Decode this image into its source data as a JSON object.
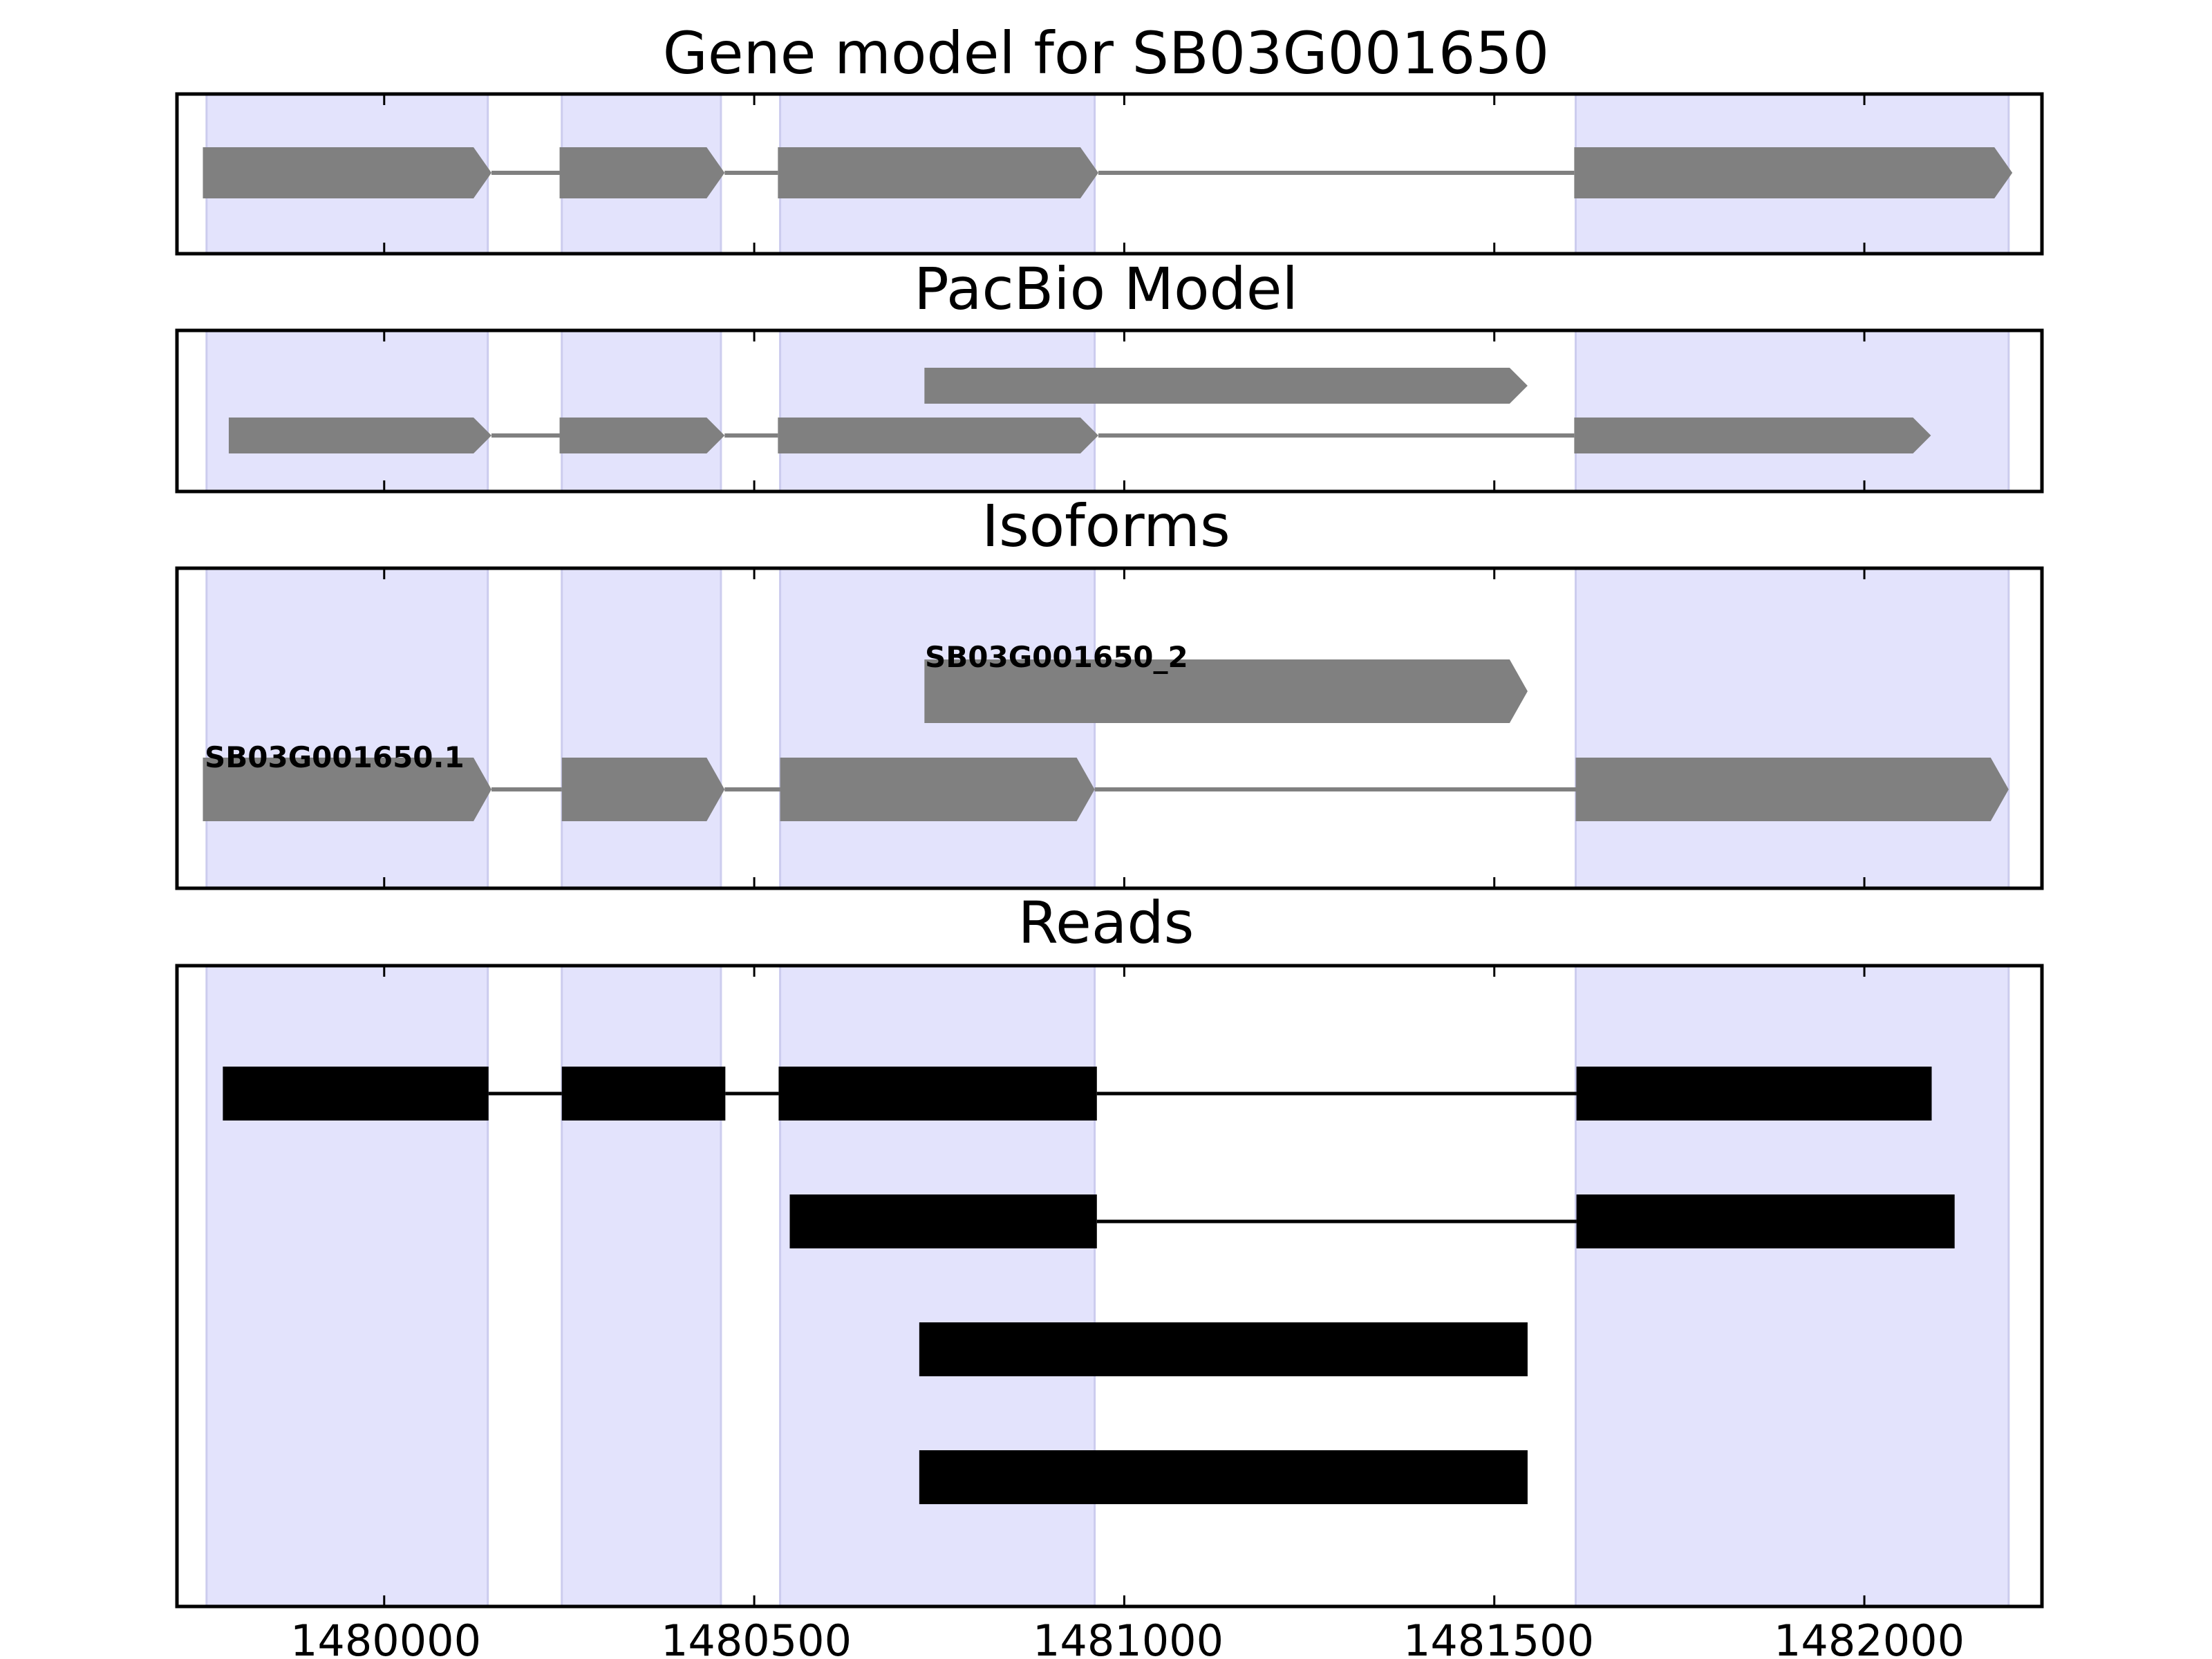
{
  "colors": {
    "exon_highlight": "#e3e3fc",
    "exon_highlight_edge": "#ccccee",
    "model_fill": "#808080",
    "read_fill": "#000000",
    "intron_model": "#808080",
    "intron_read": "#000000",
    "frame": "#000000"
  },
  "chart_data": {
    "type": "gene-structure",
    "xlim": [
      1479720,
      1482240
    ],
    "ticks": [
      1480000,
      1480500,
      1481000,
      1481500,
      1482000
    ],
    "tick_labels": [
      "1480000",
      "1480500",
      "1481000",
      "1481500",
      "1482000"
    ],
    "highlight_regions": [
      [
        1479760,
        1480140
      ],
      [
        1480240,
        1480455
      ],
      [
        1480535,
        1480960
      ],
      [
        1481610,
        1482195
      ]
    ],
    "panels": [
      {
        "title": "Gene model for SB03G001650",
        "kind": "model",
        "rows": [
          {
            "label": "",
            "exons": [
              [
                1479755,
                1480145
              ],
              [
                1480237,
                1480460
              ],
              [
                1480532,
                1480965
              ],
              [
                1481608,
                1482200
              ]
            ]
          }
        ]
      },
      {
        "title": "PacBio Model",
        "kind": "model",
        "rows": [
          {
            "label": "",
            "exons": [
              [
                1480730,
                1481545
              ]
            ]
          },
          {
            "label": "",
            "exons": [
              [
                1479790,
                1480145
              ],
              [
                1480237,
                1480460
              ],
              [
                1480532,
                1480965
              ],
              [
                1481608,
                1482090
              ]
            ]
          }
        ]
      },
      {
        "title": "Isoforms",
        "kind": "model",
        "rows": [
          {
            "label": "SB03G001650_2",
            "exons": [
              [
                1480730,
                1481545
              ]
            ]
          },
          {
            "label": "SB03G001650.1",
            "exons": [
              [
                1479755,
                1480145
              ],
              [
                1480240,
                1480460
              ],
              [
                1480535,
                1480960
              ],
              [
                1481610,
                1482195
              ]
            ]
          }
        ]
      },
      {
        "title": "Reads",
        "kind": "reads",
        "rows": [
          {
            "label": "",
            "exons": [
              [
                1479782,
                1480141
              ],
              [
                1480240,
                1480461
              ],
              [
                1480533,
                1480963
              ],
              [
                1481611,
                1482091
              ]
            ]
          },
          {
            "label": "",
            "exons": [
              [
                1480548,
                1480963
              ],
              [
                1481611,
                1482122
              ]
            ]
          },
          {
            "label": "",
            "exons": [
              [
                1480723,
                1481545
              ]
            ]
          },
          {
            "label": "",
            "exons": [
              [
                1480723,
                1481545
              ]
            ]
          }
        ]
      }
    ]
  }
}
